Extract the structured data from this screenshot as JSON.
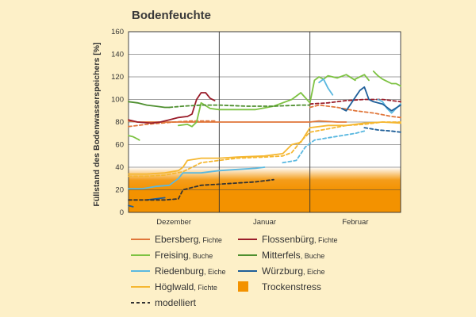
{
  "chart_data": {
    "type": "line",
    "title": "Bodenfeuchte",
    "ylabel": "Füllstand des Bodenwasserspeichers [%]",
    "xlabel": "",
    "ylim": [
      0,
      160
    ],
    "yticks": [
      0,
      20,
      40,
      60,
      80,
      100,
      120,
      140,
      160
    ],
    "x_categories": [
      "Dezember",
      "Januar",
      "Februar"
    ],
    "xlim": [
      0,
      3
    ],
    "grid": true,
    "drought_zone": {
      "label": "Trockenstress",
      "y_range": [
        0,
        40
      ],
      "color": "#f39200"
    },
    "colors": {
      "ebersberg": "#e0763a",
      "flossenbuerg": "#9a1d2a",
      "freising": "#7dc242",
      "mitterfels": "#4e8f2f",
      "riedenburg": "#5ab8e0",
      "wuerzburg": "#1f5f99",
      "hoeglwald": "#f5b731",
      "modelliert": "#333333"
    },
    "series": [
      {
        "key": "ebersberg",
        "kind": "measured",
        "x": [
          0.0,
          0.1,
          0.3,
          0.6,
          0.9,
          1.2,
          1.5,
          1.8,
          2.0,
          2.1,
          2.3,
          2.4
        ],
        "y": [
          81,
          80,
          80,
          80,
          80,
          80,
          80,
          80,
          80,
          81,
          80,
          80
        ]
      },
      {
        "key": "ebersberg",
        "kind": "model",
        "x": [
          2.0,
          2.1,
          2.3,
          2.5,
          2.7,
          2.9,
          3.0
        ],
        "y": [
          93,
          95,
          93,
          90,
          88,
          85,
          84
        ]
      },
      {
        "key": "ebersberg",
        "kind": "model",
        "x": [
          0.0,
          0.2,
          0.5,
          0.7,
          0.95
        ],
        "y": [
          76,
          78,
          80,
          81,
          81
        ]
      },
      {
        "key": "flossenbuerg",
        "kind": "measured",
        "x": [
          0.0,
          0.1,
          0.25,
          0.35,
          0.45,
          0.55,
          0.65,
          0.7,
          0.75,
          0.8,
          0.85,
          0.9,
          0.95
        ],
        "y": [
          82,
          80,
          79,
          80,
          82,
          84,
          85,
          87,
          100,
          106,
          106,
          101,
          99
        ]
      },
      {
        "key": "flossenbuerg",
        "kind": "model",
        "x": [
          2.0,
          2.2,
          2.4,
          2.6,
          2.8,
          3.0
        ],
        "y": [
          96,
          97,
          99,
          100,
          100,
          98
        ]
      },
      {
        "key": "freising",
        "kind": "measured",
        "x": [
          0.0,
          0.05,
          0.1,
          0.12
        ],
        "y": [
          68,
          67,
          65,
          64
        ]
      },
      {
        "key": "freising",
        "kind": "measured",
        "x": [
          0.55,
          0.65,
          0.7,
          0.75,
          0.8,
          0.9,
          1.0,
          1.2,
          1.4,
          1.6,
          1.8,
          1.9,
          2.0,
          2.05,
          2.1,
          2.15,
          2.2,
          2.3,
          2.4,
          2.5
        ],
        "y": [
          77,
          78,
          76,
          80,
          97,
          92,
          91,
          91,
          91,
          94,
          100,
          106,
          97,
          117,
          120,
          118,
          121,
          119,
          122,
          117
        ]
      },
      {
        "key": "freising",
        "kind": "measured",
        "x": [
          2.5,
          2.6,
          2.65
        ],
        "y": [
          118,
          122,
          117
        ]
      },
      {
        "key": "freising",
        "kind": "measured",
        "x": [
          2.7,
          2.75,
          2.8,
          2.85,
          2.9,
          2.95,
          3.0
        ],
        "y": [
          125,
          121,
          118,
          116,
          114,
          114,
          112
        ]
      },
      {
        "key": "mitterfels",
        "kind": "measured",
        "x": [
          0.0,
          0.1,
          0.2,
          0.3,
          0.4,
          0.45
        ],
        "y": [
          98,
          97,
          95,
          94,
          93,
          93
        ]
      },
      {
        "key": "mitterfels",
        "kind": "model",
        "x": [
          0.45,
          0.6,
          0.8,
          1.0,
          1.3,
          1.6,
          1.9,
          2.0
        ],
        "y": [
          93,
          94,
          95,
          95,
          94,
          94,
          95,
          95
        ]
      },
      {
        "key": "riedenburg",
        "kind": "measured",
        "x": [
          0.0,
          0.15,
          0.3,
          0.45,
          0.55,
          0.6,
          0.7,
          0.8,
          0.9,
          1.0,
          1.2,
          1.4,
          1.5
        ],
        "y": [
          21,
          21,
          23,
          24,
          30,
          35,
          35,
          35,
          36,
          37,
          38,
          39,
          40
        ]
      },
      {
        "key": "riedenburg",
        "kind": "measured",
        "x": [
          2.1,
          2.15,
          2.2,
          2.25
        ],
        "y": [
          115,
          118,
          110,
          104
        ]
      },
      {
        "key": "riedenburg",
        "kind": "measured",
        "x": [
          2.75,
          2.8,
          2.85,
          2.9,
          2.95,
          3.0
        ],
        "y": [
          100,
          98,
          92,
          88,
          92,
          96
        ]
      },
      {
        "key": "riedenburg",
        "kind": "model",
        "x": [
          1.7,
          1.85,
          1.95,
          2.05,
          2.2,
          2.35,
          2.5,
          2.6
        ],
        "y": [
          44,
          46,
          58,
          64,
          66,
          68,
          70,
          72
        ]
      },
      {
        "key": "wuerzburg",
        "kind": "measured",
        "x": [
          0.0,
          0.05
        ],
        "y": [
          6,
          5
        ]
      },
      {
        "key": "wuerzburg",
        "kind": "measured",
        "x": [
          0.2,
          0.3,
          0.4
        ],
        "y": [
          11,
          12,
          13
        ]
      },
      {
        "key": "wuerzburg",
        "kind": "measured",
        "x": [
          2.35,
          2.4,
          2.45,
          2.55,
          2.6,
          2.65,
          2.7,
          2.8,
          2.9,
          3.0
        ],
        "y": [
          92,
          90,
          96,
          108,
          111,
          100,
          98,
          96,
          90,
          95
        ]
      },
      {
        "key": "wuerzburg",
        "kind": "model",
        "x": [
          2.6,
          2.75,
          2.9,
          3.0
        ],
        "y": [
          75,
          73,
          72,
          71
        ]
      },
      {
        "key": "hoeglwald",
        "kind": "measured",
        "x": [
          0.0,
          0.2,
          0.4,
          0.55,
          0.6,
          0.65,
          0.8,
          1.0,
          1.2,
          1.5,
          1.7,
          1.8,
          1.9,
          2.0,
          2.2,
          2.4,
          2.6,
          2.8,
          3.0
        ],
        "y": [
          34,
          34,
          35,
          37,
          40,
          46,
          48,
          48,
          49,
          50,
          52,
          60,
          62,
          75,
          77,
          77,
          79,
          80,
          79
        ]
      },
      {
        "key": "hoeglwald",
        "kind": "model",
        "x": [
          0.0,
          0.2,
          0.4,
          0.6,
          0.8,
          1.0,
          1.2,
          1.5,
          1.7,
          1.8,
          1.9,
          2.0,
          2.2,
          2.4,
          2.6,
          2.8,
          3.0
        ],
        "y": [
          32,
          32,
          33,
          36,
          44,
          46,
          48,
          49,
          50,
          53,
          63,
          71,
          74,
          77,
          78,
          80,
          80
        ]
      },
      {
        "key": "modelliert",
        "kind": "model",
        "x": [
          0.0,
          0.2,
          0.4,
          0.55,
          0.6,
          0.8,
          1.0,
          1.2,
          1.4,
          1.6
        ],
        "y": [
          11,
          11,
          11,
          12,
          20,
          24,
          25,
          26,
          27,
          29
        ]
      }
    ],
    "legend": [
      {
        "key": "ebersberg",
        "name": "Ebersberg",
        "suffix": "Fichte",
        "kind": "line"
      },
      {
        "key": "flossenbuerg",
        "name": "Flossenbürg",
        "suffix": "Fichte",
        "kind": "line"
      },
      {
        "key": "freising",
        "name": "Freising",
        "suffix": "Buche",
        "kind": "line"
      },
      {
        "key": "mitterfels",
        "name": "Mitterfels",
        "suffix": "Buche",
        "kind": "line"
      },
      {
        "key": "riedenburg",
        "name": "Riedenburg",
        "suffix": "Eiche",
        "kind": "line"
      },
      {
        "key": "wuerzburg",
        "name": "Würzburg",
        "suffix": "Eiche",
        "kind": "line"
      },
      {
        "key": "hoeglwald",
        "name": "Höglwald",
        "suffix": "Fichte",
        "kind": "line"
      },
      {
        "key": "drought",
        "name": "Trockenstress",
        "suffix": "",
        "kind": "box"
      },
      {
        "key": "modelliert",
        "name": "modelliert",
        "suffix": "",
        "kind": "dashed"
      }
    ]
  }
}
